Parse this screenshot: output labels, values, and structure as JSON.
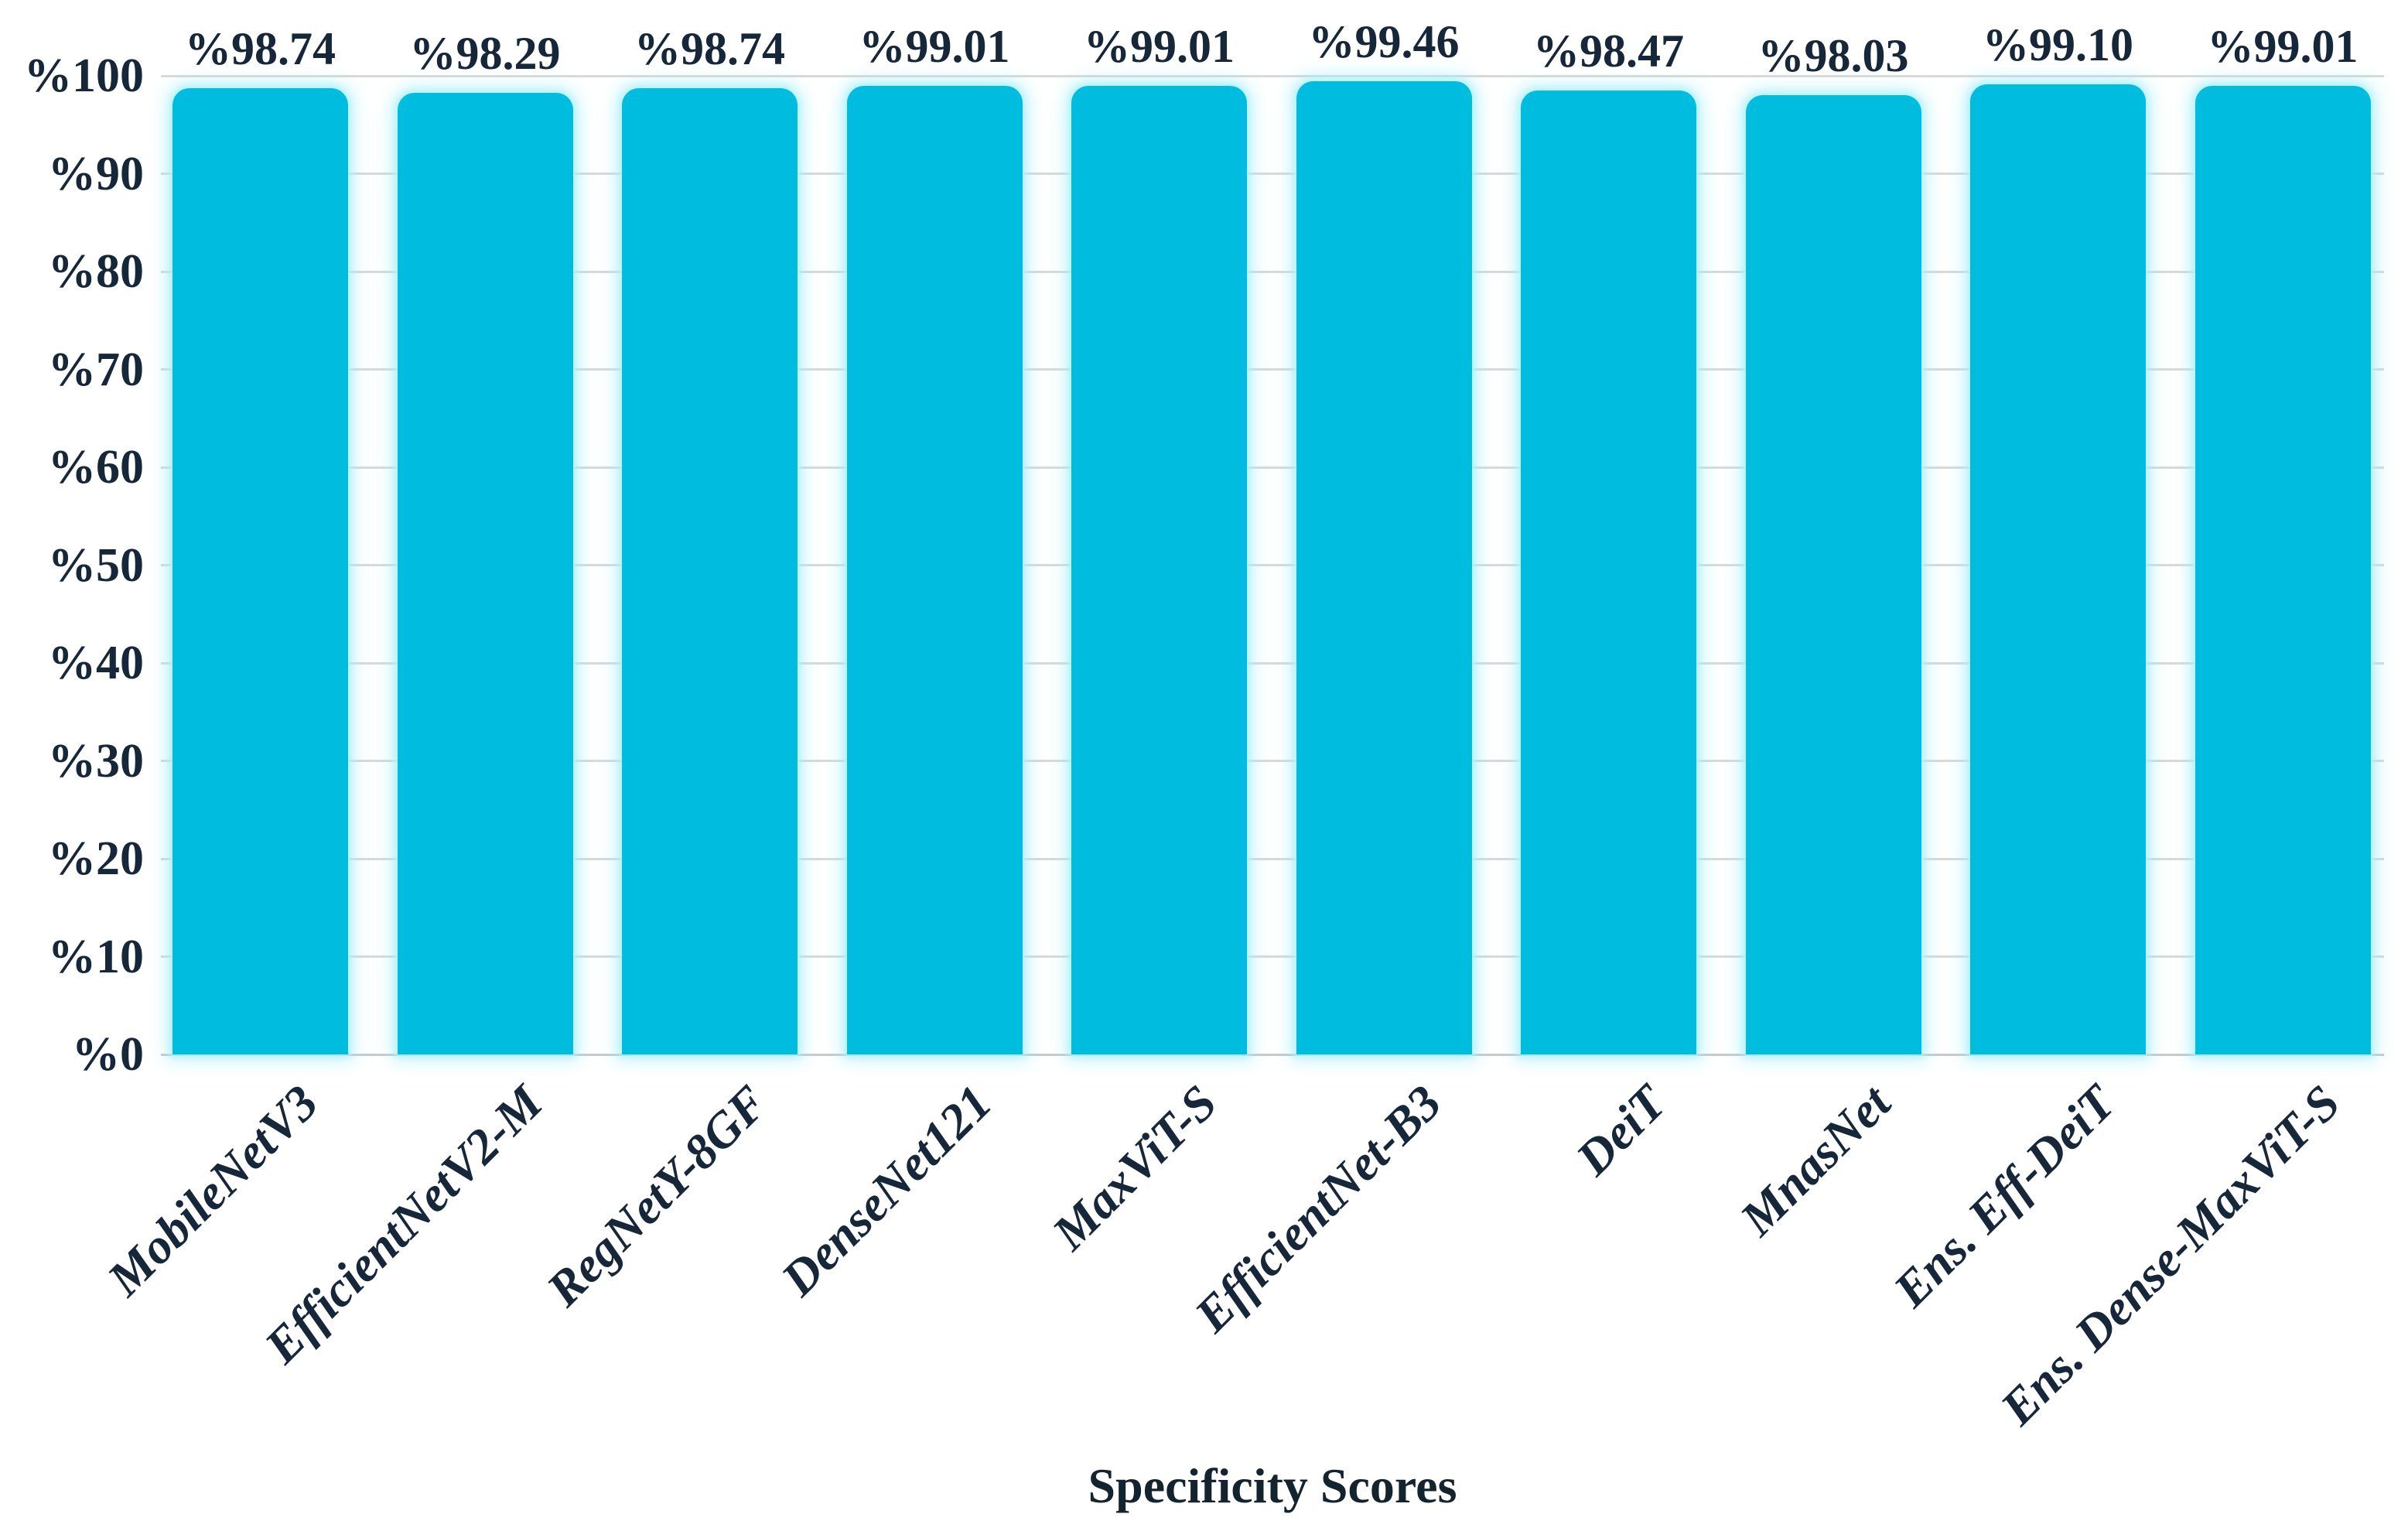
{
  "chart_data": {
    "type": "bar",
    "title": "",
    "xlabel": "Specificity Scores",
    "ylabel": "",
    "categories": [
      "MobileNetV3",
      "EfficientNetV2-M",
      "RegNetY-8GF",
      "DenseNet121",
      "MaxViT-S",
      "EfficientNet-B3",
      "DeiT",
      "MnasNet",
      "Ens. Eff-DeiT",
      "Ens. Dense-MaxViT-S"
    ],
    "values": [
      98.74,
      98.29,
      98.74,
      99.01,
      99.01,
      99.46,
      98.47,
      98.03,
      99.1,
      99.01
    ],
    "bar_labels": [
      "%98.74",
      "%98.29",
      "%98.74",
      "%99.01",
      "%99.01",
      "%99.46",
      "%98.47",
      "%98.03",
      "%99.10",
      "%99.01"
    ],
    "y_ticks": [
      {
        "value": 100,
        "label": "%100"
      },
      {
        "value": 90,
        "label": "%90"
      },
      {
        "value": 80,
        "label": "%80"
      },
      {
        "value": 70,
        "label": "%70"
      },
      {
        "value": 60,
        "label": "%60"
      },
      {
        "value": 50,
        "label": "%50"
      },
      {
        "value": 40,
        "label": "%40"
      },
      {
        "value": 30,
        "label": "%30"
      },
      {
        "value": 20,
        "label": "%20"
      },
      {
        "value": 10,
        "label": "%10"
      },
      {
        "value": 0,
        "label": "%0"
      }
    ],
    "ylim": [
      0,
      100
    ],
    "grid": true,
    "legend_position": "none",
    "colors": {
      "bar": "#00bde0",
      "bar_glow": "#a5effb",
      "text": "#16273a",
      "gridline": "#d9d9d9",
      "background": "#ffffff"
    }
  }
}
